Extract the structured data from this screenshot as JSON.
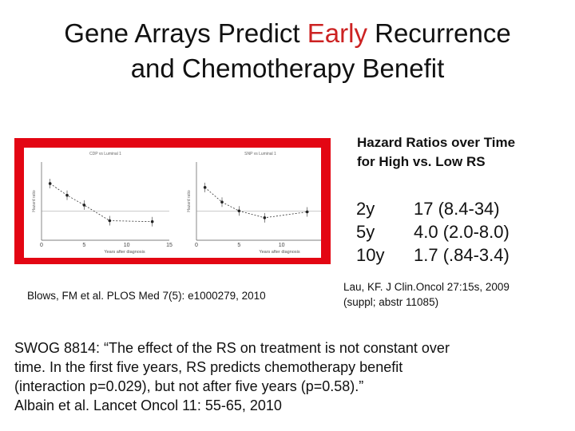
{
  "slide": {
    "title": {
      "line1_pre": "Gene Arrays Predict ",
      "line1_accent": "Early",
      "line1_post": " Recurrence",
      "line2": "and Chemotherapy Benefit",
      "accent_color": "#cc2222"
    },
    "figure": {
      "frame_color": "#e30613",
      "left_panel": {
        "header_top": "",
        "header_sub": "CDP vs Luminal 1"
      },
      "right_panel": {
        "header_top": "",
        "header_sub": "SNP vs Luminal 1"
      },
      "ylabel": "Hazard ratio",
      "xlabel": "Years after diagnosis"
    },
    "citation_left": "Blows, FM et al. PLOS Med 7(5): e1000279, 2010",
    "hazard": {
      "heading_line1": "Hazard Ratios over Time",
      "heading_line2": "for High vs. Low RS",
      "rows": [
        {
          "time": "2y",
          "value": "17  (8.4-34)"
        },
        {
          "time": "5y",
          "value": "4.0 (2.0-8.0)"
        },
        {
          "time": "10y",
          "value": "1.7 (.84-3.4)"
        }
      ]
    },
    "citation_right_line1": "Lau, KF. J Clin.Oncol 27:15s, 2009",
    "citation_right_line2": "(suppl; abstr 11085)",
    "swog_lines": [
      "SWOG 8814: “The effect of the RS on treatment is not constant over",
      "time. In the first five years, RS predicts chemotherapy benefit",
      "(interaction p=0.029), but not after five years (p=0.58).”",
      "Albain et al. Lancet Oncol 11: 55-65, 2010"
    ]
  },
  "chart_data": [
    {
      "type": "line",
      "title": "CDP vs Luminal 1",
      "xlabel": "Years after diagnosis",
      "ylabel": "Hazard ratio",
      "x": [
        1,
        3,
        5,
        8,
        13
      ],
      "series": [
        {
          "values": [
            5.8,
            4.6,
            3.6,
            2.0,
            1.9
          ]
        }
      ],
      "xticks": [
        "0",
        "5",
        "10",
        "15"
      ],
      "xlim": [
        0,
        15
      ],
      "ylim": [
        0,
        8
      ],
      "reference_line": 3
    },
    {
      "type": "line",
      "title": "SNP vs Luminal 1",
      "xlabel": "Years after diagnosis",
      "ylabel": "Hazard ratio",
      "x": [
        1,
        3,
        5,
        8,
        13
      ],
      "series": [
        {
          "values": [
            5.4,
            3.9,
            3.0,
            2.3,
            2.9
          ]
        }
      ],
      "xticks": [
        "0",
        "5",
        "10",
        "15"
      ],
      "xlim": [
        0,
        15
      ],
      "ylim": [
        0,
        8
      ],
      "reference_line": 3
    }
  ]
}
